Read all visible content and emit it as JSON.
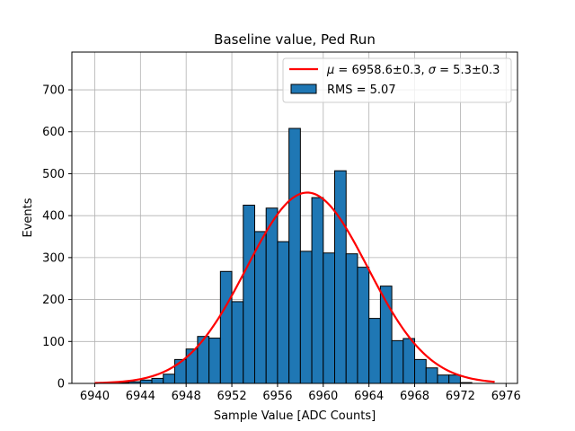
{
  "chart_data": {
    "type": "bar",
    "title": "Baseline value, Ped Run",
    "xlabel": "Sample Value [ADC Counts]",
    "ylabel": "Events",
    "xlim": [
      6938,
      6977
    ],
    "ylim": [
      0,
      790
    ],
    "xticks": [
      6940,
      6944,
      6948,
      6952,
      6956,
      6960,
      6964,
      6968,
      6972,
      6976
    ],
    "yticks": [
      0,
      100,
      200,
      300,
      400,
      500,
      600,
      700
    ],
    "grid": true,
    "legend_position": "top-right",
    "bin_width": 1,
    "histogram": {
      "name": "RMS = 5.07",
      "color": "#1f77b4",
      "edge_color": "#000000",
      "bin_starts": [
        6941,
        6942,
        6943,
        6944,
        6945,
        6946,
        6947,
        6948,
        6949,
        6950,
        6951,
        6952,
        6953,
        6954,
        6955,
        6956,
        6957,
        6958,
        6959,
        6960,
        6961,
        6962,
        6963,
        6964,
        6965,
        6966,
        6967,
        6968,
        6969,
        6970,
        6971,
        6972
      ],
      "counts": [
        1,
        2,
        4,
        8,
        12,
        22,
        57,
        82,
        112,
        108,
        267,
        195,
        425,
        362,
        418,
        338,
        608,
        315,
        443,
        311,
        507,
        309,
        277,
        155,
        232,
        102,
        107,
        57,
        37,
        20,
        20,
        2
      ]
    },
    "fit": {
      "name": "μ = 6958.6±0.3, σ = 5.3±0.3",
      "legend_label_mu": "μ",
      "legend_label_mu_val": " = 6958.6±0.3, ",
      "legend_label_sigma": "σ",
      "legend_label_sigma_val": " = 5.3±0.3",
      "color": "#ff0000",
      "mu": 6958.6,
      "sigma": 5.3,
      "peak": 455,
      "x_range": [
        6940,
        6975
      ]
    }
  }
}
